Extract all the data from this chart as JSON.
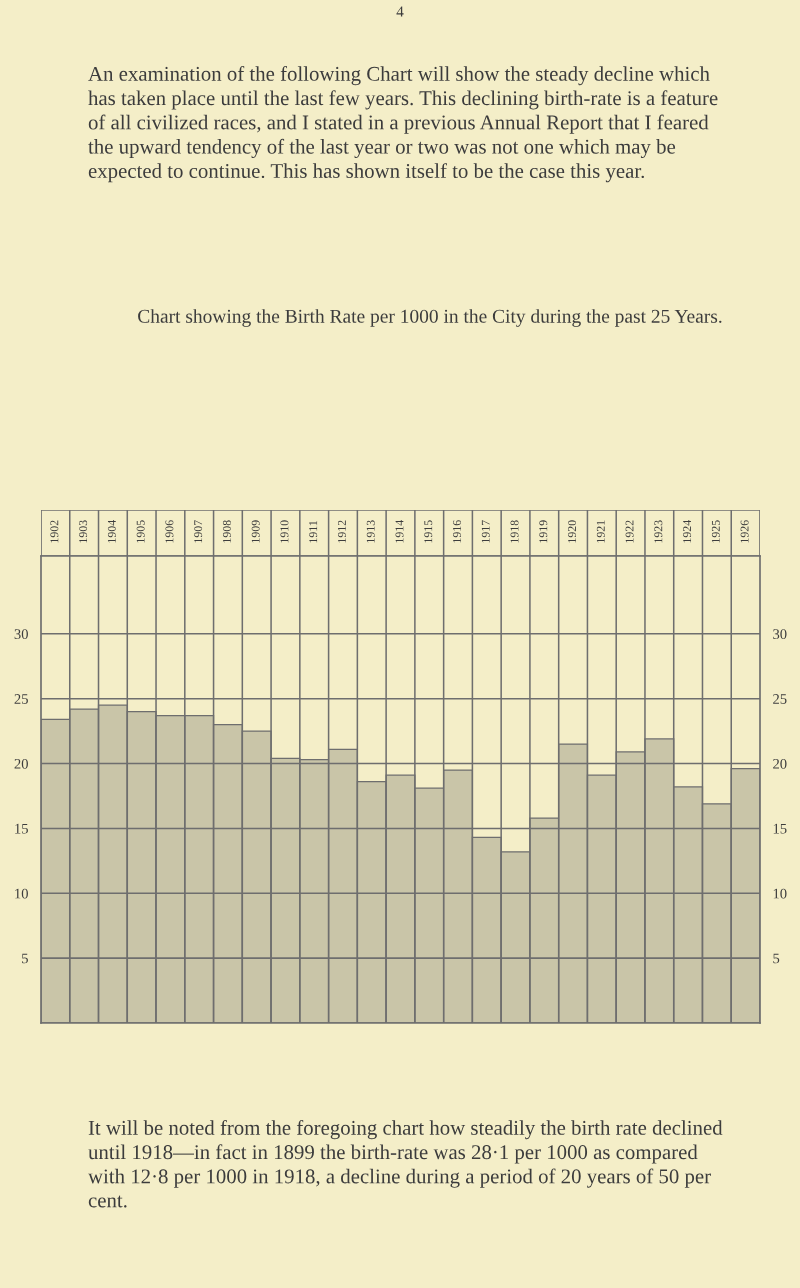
{
  "chart_data": {
    "type": "bar",
    "title": "Chart showing the Birth Rate per 1000 in the City during the past 25 Years.",
    "categories": [
      "1902",
      "1903",
      "1904",
      "1905",
      "1906",
      "1907",
      "1908",
      "1909",
      "1910",
      "1911",
      "1912",
      "1913",
      "1914",
      "1915",
      "1916",
      "1917",
      "1918",
      "1919",
      "1920",
      "1921",
      "1922",
      "1923",
      "1924",
      "1925",
      "1926"
    ],
    "values": [
      23.4,
      24.2,
      24.5,
      24.0,
      23.7,
      23.7,
      23.0,
      22.5,
      20.4,
      20.3,
      21.1,
      18.6,
      19.1,
      18.1,
      19.5,
      14.3,
      13.2,
      15.8,
      21.5,
      19.1,
      20.9,
      21.9,
      18.2,
      16.9,
      19.6
    ],
    "color": "#c9c5a8",
    "ylim": [
      0,
      36
    ],
    "yticks": [
      5,
      10,
      15,
      20,
      25,
      30
    ],
    "y2lim": [
      0,
      36
    ],
    "y2ticks": [
      5,
      10,
      15,
      20,
      25,
      30
    ],
    "grid": true,
    "annotations": [
      "4",
      "An examination of the following Chart will show the steady decline which has taken place until the last few years. This declining birth-rate is a feature of all civilized races, and I stated in a previous Annual Report that I feared the upward tendency of the last year or two was not one which may be expected to continue. This has shown itself to be the case this year.",
      "It will be noted from the foregoing chart how steadily the birth rate declined until 1918—in fact in 1899 the birth-rate was 28·1 per 1000 as compared with 12·8 per 1000 in 1918, a decline during a period of 20 years of 50 per cent."
    ]
  }
}
